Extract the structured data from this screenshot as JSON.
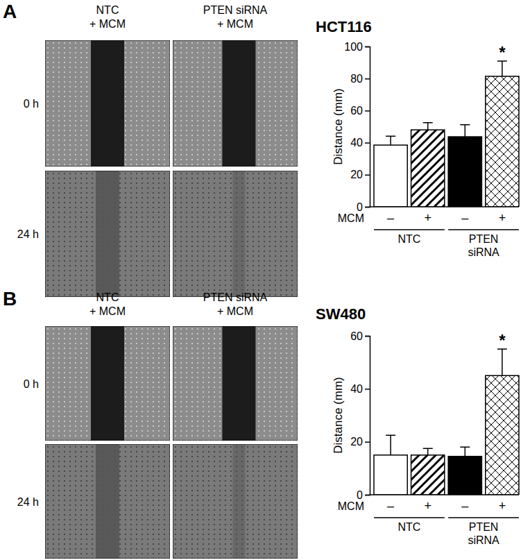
{
  "chart_data": [
    {
      "type": "bar",
      "title": "HCT116",
      "y_label": "Distance (mm)",
      "x_label": "MCM",
      "categories": [
        "–",
        "+",
        "–",
        "+"
      ],
      "groups": [
        "NTC",
        "PTEN siRNA"
      ],
      "values": [
        38.5,
        48,
        43.7,
        81.4
      ],
      "errors": [
        5.5,
        4.5,
        7.5,
        9.5
      ],
      "annotations": [
        null,
        null,
        null,
        "*"
      ],
      "colors": [
        "#ffffff",
        "#ffffff",
        "#000000",
        "#ffffff"
      ],
      "ylim": [
        0,
        100
      ],
      "yticks": [
        0,
        20,
        40,
        60,
        80,
        100
      ]
    },
    {
      "type": "bar",
      "title": "SW480",
      "y_label": "Distance (mm)",
      "x_label": "MCM",
      "categories": [
        "–",
        "+",
        "–",
        "+"
      ],
      "groups": [
        "NTC",
        "PTEN siRNA"
      ],
      "values": [
        15,
        15,
        14.5,
        45
      ],
      "errors": [
        7.5,
        2.5,
        3.5,
        10
      ],
      "annotations": [
        null,
        null,
        null,
        "*"
      ],
      "colors": [
        "#ffffff",
        "#ffffff",
        "#000000",
        "#ffffff"
      ],
      "ylim": [
        0,
        60
      ],
      "yticks": [
        0,
        20,
        40,
        60
      ]
    }
  ],
  "panels": [
    {
      "label": "A",
      "columns": [
        [
          "NTC",
          "+ MCM"
        ],
        [
          "PTEN siRNA",
          "+ MCM"
        ]
      ],
      "rows": [
        "0 h",
        "24 h"
      ]
    },
    {
      "label": "B",
      "columns": [
        [
          "NTC",
          "+ MCM"
        ],
        [
          "PTEN siRNA",
          "+ MCM"
        ]
      ],
      "rows": [
        "0 h",
        "24 h"
      ]
    }
  ]
}
